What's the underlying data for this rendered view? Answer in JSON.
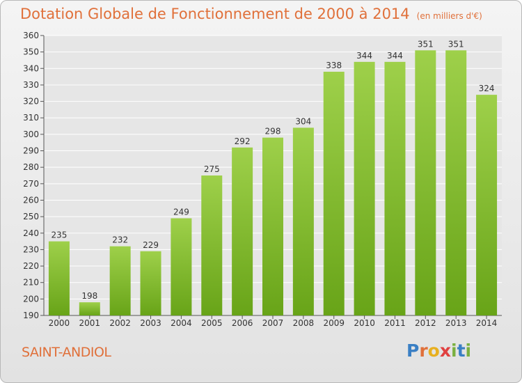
{
  "title": "Dotation Globale de Fonctionnement de 2000 à 2014",
  "subtitle": "(en milliers d'€)",
  "commune": "SAINT-ANDIOL",
  "logo": {
    "text": "Proxiti",
    "letters": [
      {
        "ch": "P",
        "color": "#3a7fc4"
      },
      {
        "ch": "r",
        "color": "#e0703a"
      },
      {
        "ch": "o",
        "color": "#e8b020"
      },
      {
        "ch": "x",
        "color": "#e04040"
      },
      {
        "ch": "i",
        "color": "#7ab040"
      },
      {
        "ch": "t",
        "color": "#3a7fc4"
      },
      {
        "ch": "i",
        "color": "#7ab040"
      }
    ]
  },
  "colors": {
    "bar_top": "#9ed04a",
    "bar_bottom": "#68a418",
    "title": "#e0703a",
    "grid": "#ffffff",
    "axis": "#555555"
  },
  "chart_data": {
    "type": "bar",
    "categories": [
      "2000",
      "2001",
      "2002",
      "2003",
      "2004",
      "2005",
      "2006",
      "2007",
      "2008",
      "2009",
      "2010",
      "2011",
      "2012",
      "2013",
      "2014"
    ],
    "values": [
      235,
      198,
      232,
      229,
      249,
      275,
      292,
      298,
      304,
      338,
      344,
      344,
      351,
      351,
      324
    ],
    "ylim": [
      190,
      360
    ],
    "yticks": [
      190,
      200,
      210,
      220,
      230,
      240,
      250,
      260,
      270,
      280,
      290,
      300,
      310,
      320,
      330,
      340,
      350,
      360
    ],
    "grid": true,
    "title": "Dotation Globale de Fonctionnement de 2000 à 2014",
    "xlabel": "",
    "ylabel": ""
  }
}
